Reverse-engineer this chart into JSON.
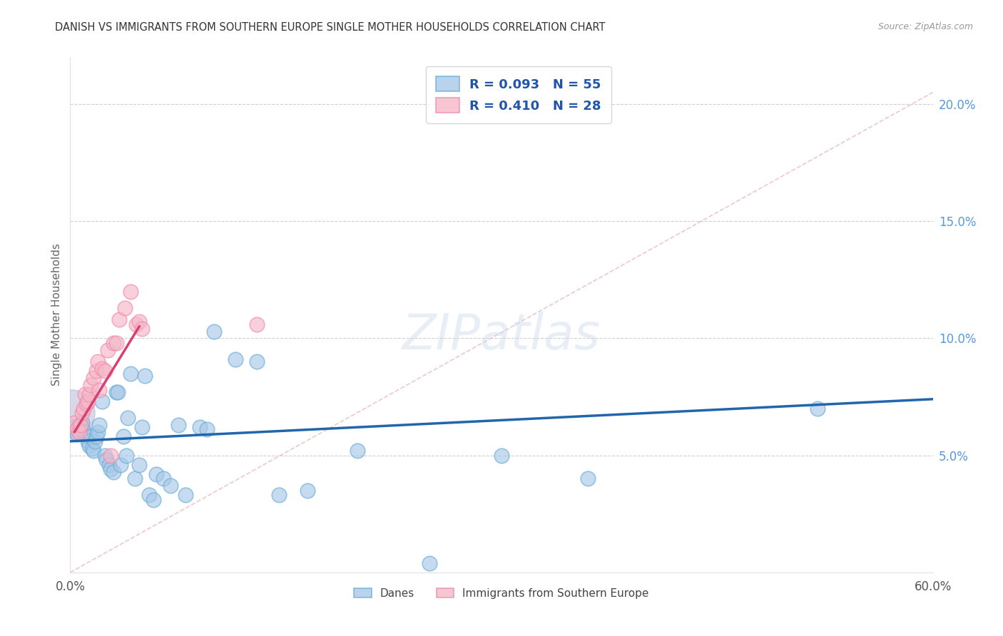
{
  "title": "DANISH VS IMMIGRANTS FROM SOUTHERN EUROPE SINGLE MOTHER HOUSEHOLDS CORRELATION CHART",
  "source": "Source: ZipAtlas.com",
  "ylabel": "Single Mother Households",
  "xlim": [
    0.0,
    0.6
  ],
  "ylim": [
    0.0,
    0.22
  ],
  "yticks": [
    0.05,
    0.1,
    0.15,
    0.2
  ],
  "ytick_labels": [
    "5.0%",
    "10.0%",
    "15.0%",
    "20.0%"
  ],
  "xticks": [
    0.0,
    0.1,
    0.2,
    0.3,
    0.4,
    0.5,
    0.6
  ],
  "xtick_labels": [
    "0.0%",
    "",
    "",
    "",
    "",
    "",
    "60.0%"
  ],
  "danes_R": 0.093,
  "danes_N": 55,
  "immigrants_R": 0.41,
  "immigrants_N": 28,
  "danes_color": "#a8c8e8",
  "danes_edge_color": "#6baed6",
  "danes_line_color": "#2166ac",
  "immigrants_color": "#f4b8c8",
  "immigrants_edge_color": "#f48aaa",
  "immigrants_line_color": "#d94070",
  "large_bubble_color": "#b8b8d8",
  "watermark": "ZIPatlas",
  "background_color": "#ffffff",
  "danes_x": [
    0.003,
    0.004,
    0.005,
    0.006,
    0.007,
    0.008,
    0.009,
    0.01,
    0.011,
    0.012,
    0.013,
    0.014,
    0.015,
    0.016,
    0.017,
    0.018,
    0.019,
    0.02,
    0.022,
    0.024,
    0.025,
    0.027,
    0.028,
    0.03,
    0.032,
    0.033,
    0.035,
    0.037,
    0.039,
    0.04,
    0.042,
    0.045,
    0.048,
    0.05,
    0.052,
    0.055,
    0.058,
    0.06,
    0.065,
    0.07,
    0.075,
    0.08,
    0.09,
    0.095,
    0.1,
    0.115,
    0.13,
    0.145,
    0.165,
    0.2,
    0.25,
    0.3,
    0.36,
    0.52,
    0.001
  ],
  "danes_y": [
    0.062,
    0.06,
    0.059,
    0.063,
    0.062,
    0.064,
    0.06,
    0.06,
    0.058,
    0.056,
    0.054,
    0.058,
    0.053,
    0.052,
    0.056,
    0.058,
    0.06,
    0.063,
    0.073,
    0.05,
    0.048,
    0.046,
    0.044,
    0.043,
    0.077,
    0.077,
    0.046,
    0.058,
    0.05,
    0.066,
    0.085,
    0.04,
    0.046,
    0.062,
    0.084,
    0.033,
    0.031,
    0.042,
    0.04,
    0.037,
    0.063,
    0.033,
    0.062,
    0.061,
    0.103,
    0.091,
    0.09,
    0.033,
    0.035,
    0.052,
    0.004,
    0.05,
    0.04,
    0.07,
    0.068
  ],
  "immigrants_x": [
    0.003,
    0.005,
    0.006,
    0.007,
    0.008,
    0.009,
    0.01,
    0.011,
    0.012,
    0.013,
    0.014,
    0.016,
    0.018,
    0.019,
    0.02,
    0.022,
    0.024,
    0.026,
    0.028,
    0.03,
    0.032,
    0.034,
    0.038,
    0.042,
    0.046,
    0.048,
    0.05,
    0.13
  ],
  "immigrants_y": [
    0.064,
    0.061,
    0.06,
    0.063,
    0.068,
    0.07,
    0.076,
    0.072,
    0.073,
    0.076,
    0.08,
    0.083,
    0.086,
    0.09,
    0.078,
    0.087,
    0.086,
    0.095,
    0.05,
    0.098,
    0.098,
    0.108,
    0.113,
    0.12,
    0.106,
    0.107,
    0.104,
    0.106
  ],
  "blue_line_x": [
    0.0,
    0.6
  ],
  "blue_line_y": [
    0.056,
    0.074
  ],
  "pink_line_x": [
    0.003,
    0.048
  ],
  "pink_line_y": [
    0.06,
    0.105
  ],
  "diag_line_x": [
    0.0,
    0.6
  ],
  "diag_line_y": [
    0.0,
    0.205
  ]
}
